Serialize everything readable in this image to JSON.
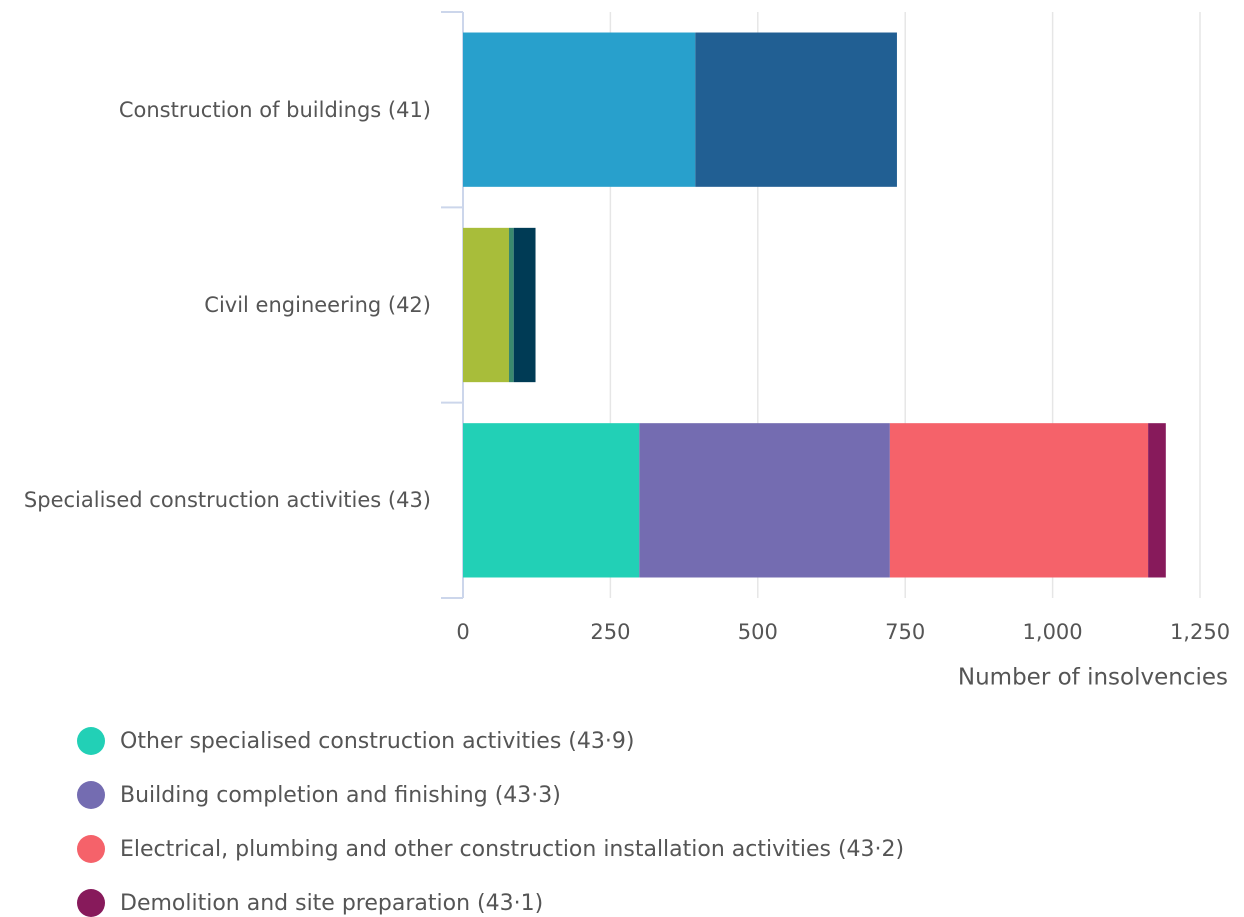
{
  "chart_data": {
    "type": "bar",
    "orientation": "horizontal",
    "stacked": true,
    "categories": [
      "Construction of buildings (41)",
      "Civil engineering (42)",
      "Specialised construction activities (43)"
    ],
    "series": [
      {
        "color": "#28a0cc",
        "values": [
          394,
          null,
          null
        ]
      },
      {
        "color": "#215f93",
        "values": [
          342,
          null,
          null
        ]
      },
      {
        "color": "#a8bd3a",
        "values": [
          null,
          78,
          null
        ]
      },
      {
        "color": "#3a8a6e",
        "values": [
          null,
          8,
          null
        ]
      },
      {
        "color": "#003b55",
        "values": [
          null,
          37,
          null
        ]
      },
      {
        "name": "Other specialised construction activities (43·9)",
        "color": "#22d0b6",
        "values": [
          null,
          null,
          299
        ]
      },
      {
        "name": "Building completion and finishing (43·3)",
        "color": "#746cb1",
        "values": [
          null,
          null,
          425
        ]
      },
      {
        "name": "Electrical, plumbing and other construction installation activities (43·2)",
        "color": "#f5626a",
        "values": [
          null,
          null,
          438
        ]
      },
      {
        "name": "Demolition and site preparation (43·1)",
        "color": "#871a5b",
        "values": [
          null,
          null,
          30
        ]
      }
    ],
    "xlabel": "Number of insolvencies",
    "xlim": [
      0,
      1250
    ],
    "xticks": [
      0,
      250,
      500,
      750,
      {
        "value": 1000,
        "label": "1,000"
      },
      {
        "value": 1250,
        "label": "1,250"
      }
    ],
    "grid": true
  }
}
